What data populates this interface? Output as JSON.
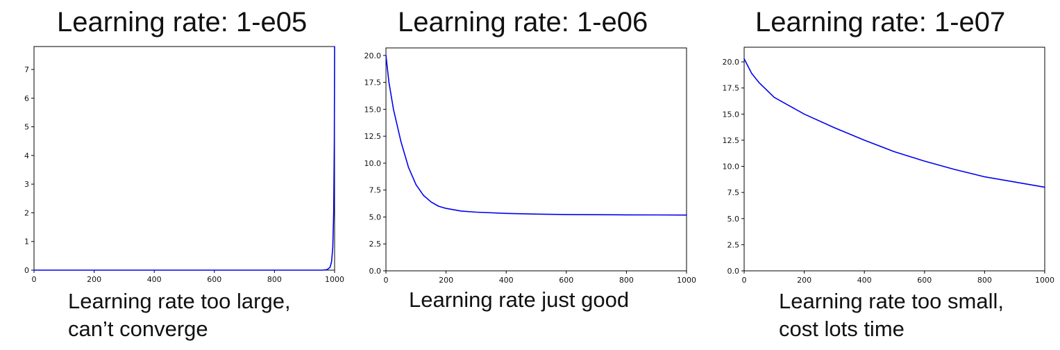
{
  "panels": [
    {
      "title": "Learning rate: 1-e05",
      "caption_lines": [
        "Learning rate too large,",
        "can’t converge"
      ]
    },
    {
      "title": "Learning rate: 1-e06",
      "caption_lines": [
        "Learning rate just good"
      ]
    },
    {
      "title": "Learning rate: 1-e07",
      "caption_lines": [
        "Learning rate too small,",
        "cost lots time"
      ]
    }
  ],
  "chart_data": [
    {
      "type": "line",
      "title": "Learning rate: 1-e05",
      "xlabel": "",
      "ylabel": "",
      "xlim": [
        0,
        1000
      ],
      "ylim": [
        0,
        7.8
      ],
      "xticks": [
        "0",
        "200",
        "400",
        "600",
        "800",
        "1000"
      ],
      "yticks": [
        "0",
        "1",
        "2",
        "3",
        "4",
        "5",
        "6",
        "7"
      ],
      "grid": false,
      "line_color": "#0000ee",
      "series": [
        {
          "x": [
            0,
            200,
            400,
            600,
            800,
            960,
            975,
            985,
            990,
            994,
            997,
            999,
            1000
          ],
          "y": [
            0,
            0,
            0,
            0,
            0,
            0,
            0.02,
            0.1,
            0.3,
            0.8,
            2.0,
            4.5,
            7.8
          ]
        }
      ]
    },
    {
      "type": "line",
      "title": "Learning rate: 1-e06",
      "xlabel": "",
      "ylabel": "",
      "xlim": [
        0,
        1000
      ],
      "ylim": [
        0,
        20.7
      ],
      "xticks": [
        "0",
        "200",
        "400",
        "600",
        "800",
        "1000"
      ],
      "yticks": [
        "0.0",
        "2.5",
        "5.0",
        "7.5",
        "10.0",
        "12.5",
        "15.0",
        "17.5",
        "20.0"
      ],
      "grid": false,
      "line_color": "#0000ee",
      "series": [
        {
          "x": [
            0,
            10,
            25,
            50,
            75,
            100,
            125,
            150,
            175,
            200,
            250,
            300,
            400,
            500,
            600,
            700,
            800,
            900,
            1000
          ],
          "y": [
            20.0,
            17.5,
            15.0,
            12.0,
            9.6,
            8.0,
            7.0,
            6.4,
            6.0,
            5.8,
            5.55,
            5.45,
            5.33,
            5.27,
            5.23,
            5.21,
            5.2,
            5.19,
            5.18
          ]
        }
      ]
    },
    {
      "type": "line",
      "title": "Learning rate: 1-e07",
      "xlabel": "",
      "ylabel": "",
      "xlim": [
        0,
        1000
      ],
      "ylim": [
        0,
        21.4
      ],
      "xticks": [
        "0",
        "200",
        "400",
        "600",
        "800",
        "1000"
      ],
      "yticks": [
        "0.0",
        "2.5",
        "5.0",
        "7.5",
        "10.0",
        "12.5",
        "15.0",
        "17.5",
        "20.0"
      ],
      "grid": false,
      "line_color": "#0000ee",
      "series": [
        {
          "x": [
            0,
            25,
            50,
            100,
            150,
            200,
            300,
            400,
            500,
            600,
            700,
            800,
            900,
            1000
          ],
          "y": [
            20.3,
            18.9,
            18.0,
            16.6,
            15.8,
            15.0,
            13.7,
            12.5,
            11.4,
            10.5,
            9.7,
            9.0,
            8.5,
            8.0
          ]
        }
      ]
    }
  ]
}
